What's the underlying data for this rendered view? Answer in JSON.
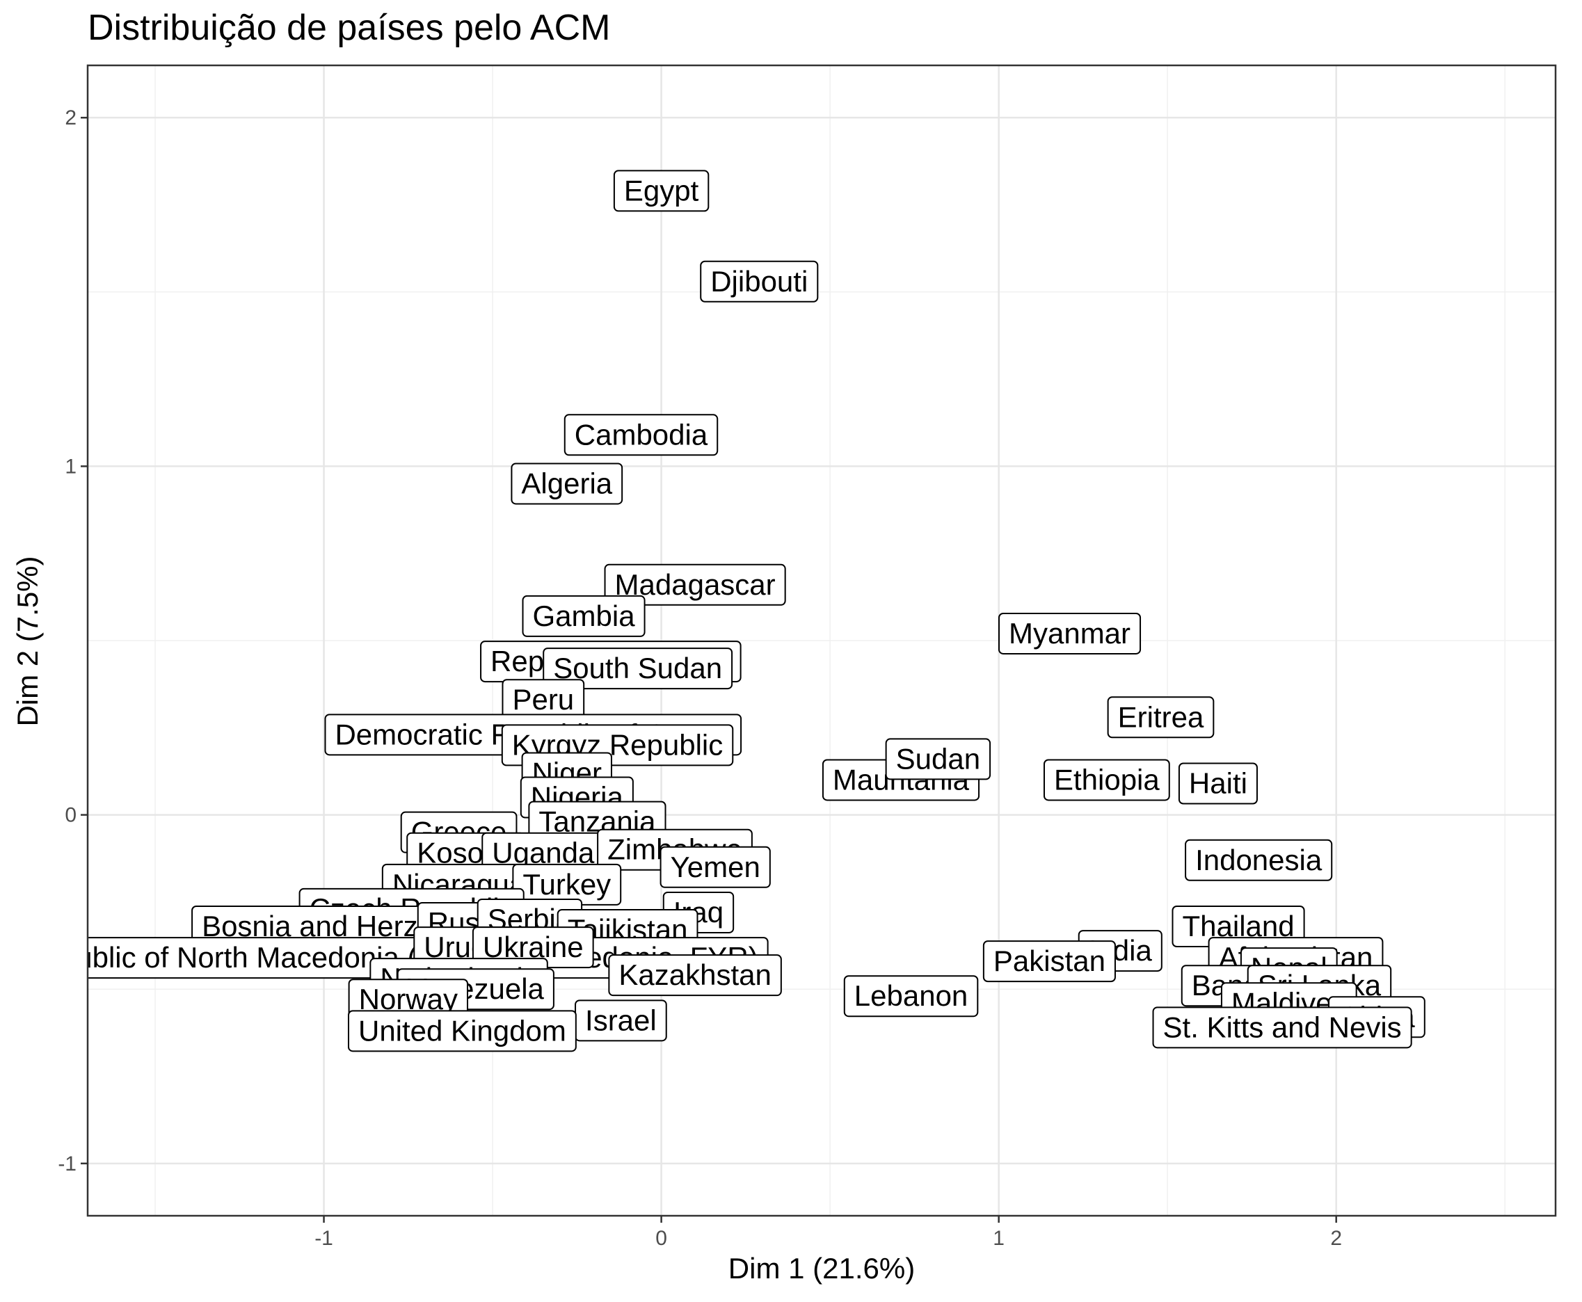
{
  "chart_data": {
    "type": "scatter",
    "title": "Distribuição de países pelo ACM",
    "xlabel": "Dim 1 (21.6%)",
    "ylabel": "Dim 2 (7.5%)",
    "xlim": [
      -1.7,
      2.65
    ],
    "ylim": [
      -1.15,
      2.15
    ],
    "xticks": [
      -1,
      0,
      1,
      2
    ],
    "yticks": [
      -1,
      0,
      1,
      2
    ],
    "grid": true,
    "points": [
      {
        "label": "Egypt",
        "x": 0.0,
        "y": 1.79
      },
      {
        "label": "Djibouti",
        "x": 0.29,
        "y": 1.53
      },
      {
        "label": "Cambodia",
        "x": -0.06,
        "y": 1.09
      },
      {
        "label": "Algeria",
        "x": -0.28,
        "y": 0.95
      },
      {
        "label": "Madagascar",
        "x": 0.1,
        "y": 0.66
      },
      {
        "label": "Gambia",
        "x": -0.23,
        "y": 0.57
      },
      {
        "label": "Republic of Congo",
        "x": -0.15,
        "y": 0.44
      },
      {
        "label": "South Sudan",
        "x": -0.07,
        "y": 0.42
      },
      {
        "label": "Peru",
        "x": -0.35,
        "y": 0.33
      },
      {
        "label": "Democratic Republic of Congo",
        "x": -0.38,
        "y": 0.23
      },
      {
        "label": "Kyrgyz Republic",
        "x": -0.13,
        "y": 0.2
      },
      {
        "label": "Niger",
        "x": -0.28,
        "y": 0.12
      },
      {
        "label": "Nigeria",
        "x": -0.25,
        "y": 0.05
      },
      {
        "label": "Tanzania",
        "x": -0.19,
        "y": -0.02
      },
      {
        "label": "Greece",
        "x": -0.6,
        "y": -0.05
      },
      {
        "label": "Kosovo",
        "x": -0.58,
        "y": -0.11
      },
      {
        "label": "Uganda",
        "x": -0.35,
        "y": -0.11
      },
      {
        "label": "Zimbabwe",
        "x": 0.04,
        "y": -0.1
      },
      {
        "label": "Yemen",
        "x": 0.16,
        "y": -0.15
      },
      {
        "label": "Nicaragua",
        "x": -0.6,
        "y": -0.2
      },
      {
        "label": "Turkey",
        "x": -0.28,
        "y": -0.2
      },
      {
        "label": "Czech Republic",
        "x": -0.74,
        "y": -0.27
      },
      {
        "label": "Iraq",
        "x": 0.11,
        "y": -0.28
      },
      {
        "label": "Bosnia and Herzegovina",
        "x": -0.89,
        "y": -0.32
      },
      {
        "label": "Russia",
        "x": -0.56,
        "y": -0.31
      },
      {
        "label": "Serbia",
        "x": -0.39,
        "y": -0.3
      },
      {
        "label": "Tajikistan",
        "x": -0.1,
        "y": -0.33
      },
      {
        "label": "The Republic of North Macedonia (formerly Macedonia, FYR)",
        "x": -0.89,
        "y": -0.41
      },
      {
        "label": "Uruguay",
        "x": -0.54,
        "y": -0.38
      },
      {
        "label": "Ukraine",
        "x": -0.38,
        "y": -0.38
      },
      {
        "label": "Kazakhstan",
        "x": 0.1,
        "y": -0.46
      },
      {
        "label": "Netherlands",
        "x": -0.6,
        "y": -0.47
      },
      {
        "label": "Venezuela",
        "x": -0.55,
        "y": -0.5
      },
      {
        "label": "Norway",
        "x": -0.75,
        "y": -0.53
      },
      {
        "label": "Israel",
        "x": -0.12,
        "y": -0.59
      },
      {
        "label": "United Kingdom",
        "x": -0.59,
        "y": -0.62
      },
      {
        "label": "Mauritania",
        "x": 0.71,
        "y": 0.1
      },
      {
        "label": "Sudan",
        "x": 0.82,
        "y": 0.16
      },
      {
        "label": "Myanmar",
        "x": 1.21,
        "y": 0.52
      },
      {
        "label": "Eritrea",
        "x": 1.48,
        "y": 0.28
      },
      {
        "label": "Ethiopia",
        "x": 1.32,
        "y": 0.1
      },
      {
        "label": "Haiti",
        "x": 1.65,
        "y": 0.09
      },
      {
        "label": "Indonesia",
        "x": 1.77,
        "y": -0.13
      },
      {
        "label": "Thailand",
        "x": 1.71,
        "y": -0.32
      },
      {
        "label": "India",
        "x": 1.36,
        "y": -0.39
      },
      {
        "label": "Pakistan",
        "x": 1.15,
        "y": -0.42
      },
      {
        "label": "Lebanon",
        "x": 0.74,
        "y": -0.52
      },
      {
        "label": "Afghanistan",
        "x": 1.88,
        "y": -0.41
      },
      {
        "label": "Nepal",
        "x": 1.86,
        "y": -0.44
      },
      {
        "label": "Bangladesh",
        "x": 1.8,
        "y": -0.49
      },
      {
        "label": "Sri Lanka",
        "x": 1.95,
        "y": -0.49
      },
      {
        "label": "Maldives",
        "x": 1.86,
        "y": -0.54
      },
      {
        "label": "China",
        "x": 2.12,
        "y": -0.58
      },
      {
        "label": "St. Kitts and Nevis",
        "x": 1.84,
        "y": -0.61
      }
    ]
  }
}
